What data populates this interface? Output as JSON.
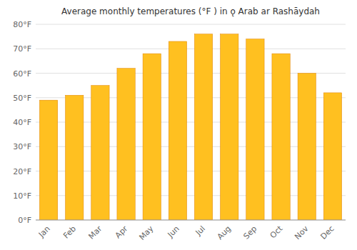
{
  "chart_data": {
    "type": "bar",
    "title": "Average monthly temperatures (°F ) in ǫ Arab ar Rashāydah",
    "categories": [
      "Jan",
      "Feb",
      "Mar",
      "Apr",
      "May",
      "Jun",
      "Jul",
      "Aug",
      "Sep",
      "Oct",
      "Nov",
      "Dec"
    ],
    "values": [
      49,
      51,
      55,
      62,
      68,
      73,
      76,
      76,
      74,
      68,
      60,
      52
    ],
    "color": "#FFC020",
    "ylim": [
      0,
      80
    ],
    "yticks": [
      {
        "value": 0,
        "label": "0°F"
      },
      {
        "value": 10,
        "label": "10°F"
      },
      {
        "value": 20,
        "label": "20°F"
      },
      {
        "value": 30,
        "label": "30°F"
      },
      {
        "value": 40,
        "label": "40°F"
      },
      {
        "value": 50,
        "label": "50°F"
      },
      {
        "value": 60,
        "label": "60°F"
      },
      {
        "value": 70,
        "label": "70°F"
      },
      {
        "value": 80,
        "label": "80°F"
      }
    ],
    "grid": true
  }
}
